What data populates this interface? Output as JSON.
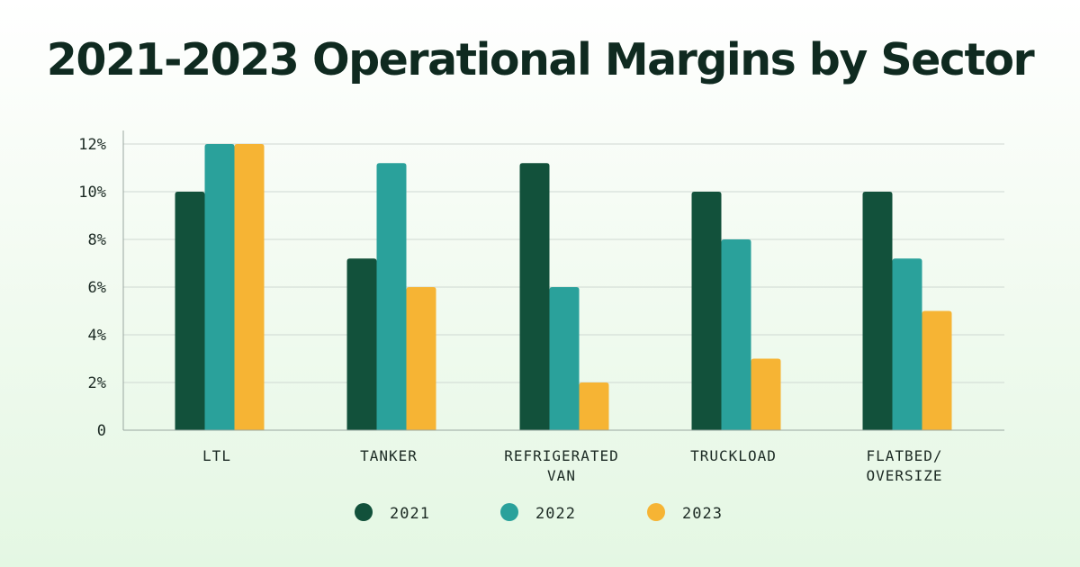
{
  "chart_data": {
    "type": "bar",
    "title": "2021-2023 Operational Margins by Sector",
    "xlabel": "",
    "ylabel": "",
    "categories": [
      [
        "LTL"
      ],
      [
        "TANKER"
      ],
      [
        "REFRIGERATED",
        "VAN"
      ],
      [
        "TRUCKLOAD"
      ],
      [
        "FLATBED/",
        "OVERSIZE"
      ]
    ],
    "series": [
      {
        "name": "2021",
        "color": "#12513b",
        "values": [
          10,
          7.2,
          11.2,
          10,
          10
        ]
      },
      {
        "name": "2022",
        "color": "#2aa19b",
        "values": [
          12,
          11.2,
          6,
          8,
          7.2
        ]
      },
      {
        "name": "2023",
        "color": "#f6b434",
        "values": [
          12,
          6,
          2,
          3,
          5
        ]
      }
    ],
    "ylim": [
      0,
      12
    ],
    "yticks": [
      0,
      2,
      4,
      6,
      8,
      10,
      12
    ],
    "ytick_labels": [
      "0",
      "2%",
      "4%",
      "6%",
      "8%",
      "10%",
      "12%"
    ],
    "grid": true,
    "legend_position": "bottom"
  }
}
